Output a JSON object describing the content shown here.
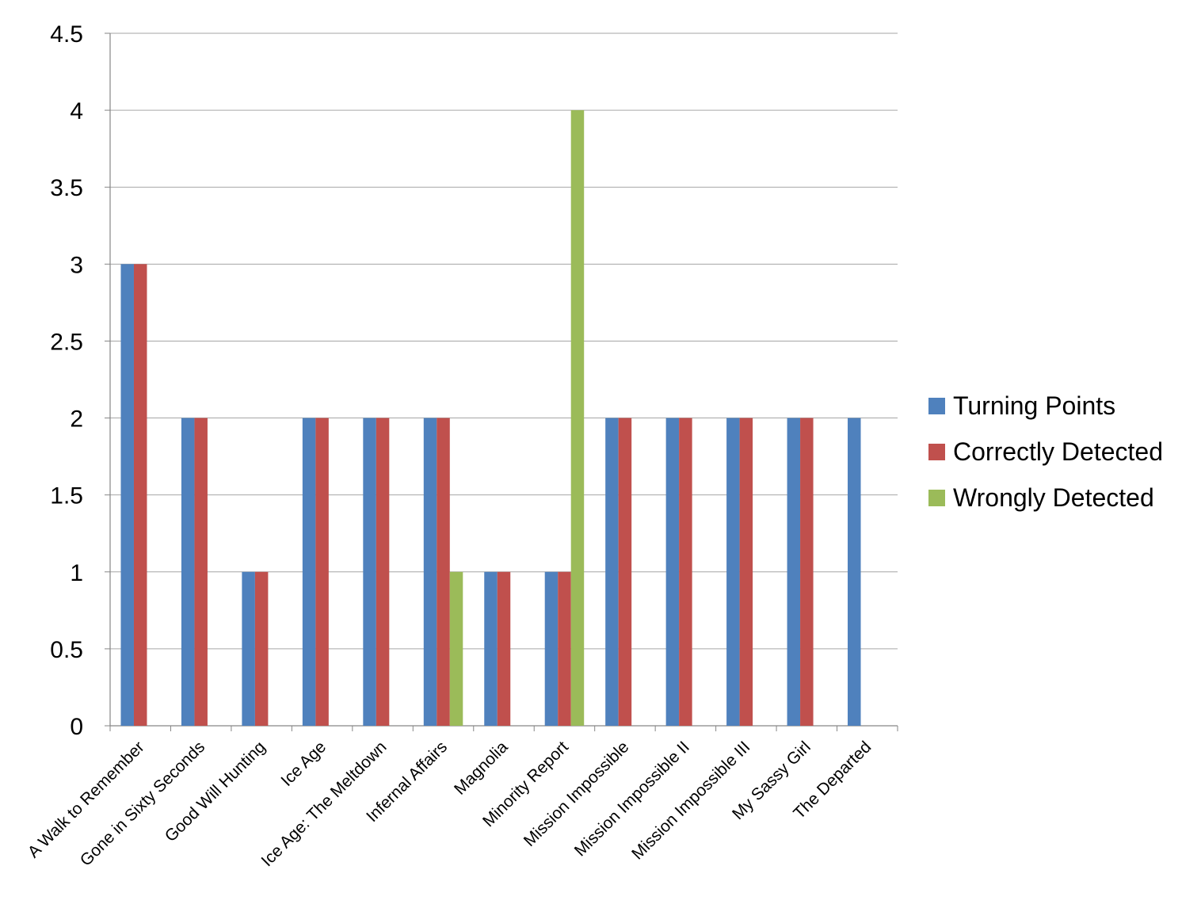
{
  "chart_data": {
    "type": "bar",
    "title": "",
    "xlabel": "",
    "ylabel": "",
    "ylim": [
      0,
      4.5
    ],
    "yticks": [
      "0",
      "0.5",
      "1",
      "1.5",
      "2",
      "2.5",
      "3",
      "3.5",
      "4",
      "4.5"
    ],
    "grid": true,
    "legend_position": "right",
    "categories": [
      "A Walk to Remember",
      "Gone in Sixty Seconds",
      "Good Will Hunting",
      "Ice Age",
      "Ice Age: The Meltdown",
      "Infernal Affairs",
      "Magnolia",
      "Minority Report",
      "Mission Impossible",
      "Mission Impossible II",
      "Mission Impossible III",
      "My Sassy Girl",
      "The Departed"
    ],
    "series": [
      {
        "name": "Turning Points",
        "color": "#4f81bd",
        "values": [
          3,
          2,
          1,
          2,
          2,
          2,
          1,
          1,
          2,
          2,
          2,
          2,
          2
        ]
      },
      {
        "name": "Correctly Detected",
        "color": "#c0504d",
        "values": [
          3,
          2,
          1,
          2,
          2,
          2,
          1,
          1,
          2,
          2,
          2,
          2,
          0
        ]
      },
      {
        "name": "Wrongly Detected",
        "color": "#9bbb59",
        "values": [
          0,
          0,
          0,
          0,
          0,
          1,
          0,
          4,
          0,
          0,
          0,
          0,
          0
        ]
      }
    ]
  }
}
